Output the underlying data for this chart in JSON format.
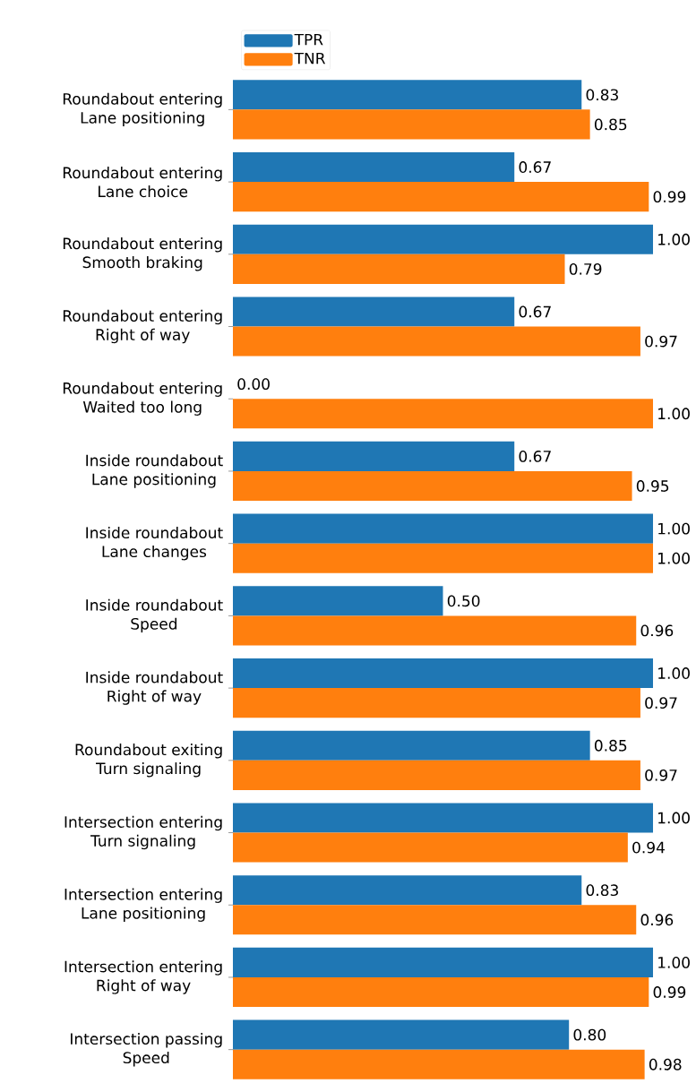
{
  "chart_data": {
    "type": "bar",
    "orientation": "horizontal",
    "categories": [
      "Roundabout entering\nLane positioning",
      "Roundabout entering\nLane choice",
      "Roundabout entering\nSmooth braking",
      "Roundabout entering\nRight of way",
      "Roundabout entering\nWaited too long",
      "Inside roundabout\nLane positioning",
      "Inside roundabout\nLane changes",
      "Inside roundabout\nSpeed",
      "Inside roundabout\nRight of way",
      "Roundabout exiting\nTurn signaling",
      "Intersection entering\nTurn signaling",
      "Intersection entering\nLane positioning",
      "Intersection entering\nRight of way",
      "Intersection passing\nSpeed"
    ],
    "series": [
      {
        "name": "TPR",
        "color": "#1f77b4",
        "values": [
          0.83,
          0.67,
          1.0,
          0.67,
          0.0,
          0.67,
          1.0,
          0.5,
          1.0,
          0.85,
          1.0,
          0.83,
          1.0,
          0.8
        ],
        "value_labels": [
          "0.83",
          "0.67",
          "1.00",
          "0.67",
          "0.00",
          "0.67",
          "1.00",
          "0.50",
          "1.00",
          "0.85",
          "1.00",
          "0.83",
          "1.00",
          "0.80"
        ]
      },
      {
        "name": "TNR",
        "color": "#ff7f0e",
        "values": [
          0.85,
          0.99,
          0.79,
          0.97,
          1.0,
          0.95,
          1.0,
          0.96,
          0.97,
          0.97,
          0.94,
          0.96,
          0.99,
          0.98
        ],
        "value_labels": [
          "0.85",
          "0.99",
          "0.79",
          "0.97",
          "1.00",
          "0.95",
          "1.00",
          "0.96",
          "0.97",
          "0.97",
          "0.94",
          "0.96",
          "0.99",
          "0.98"
        ]
      }
    ],
    "legend": "top left",
    "tick_labels": "y"
  }
}
